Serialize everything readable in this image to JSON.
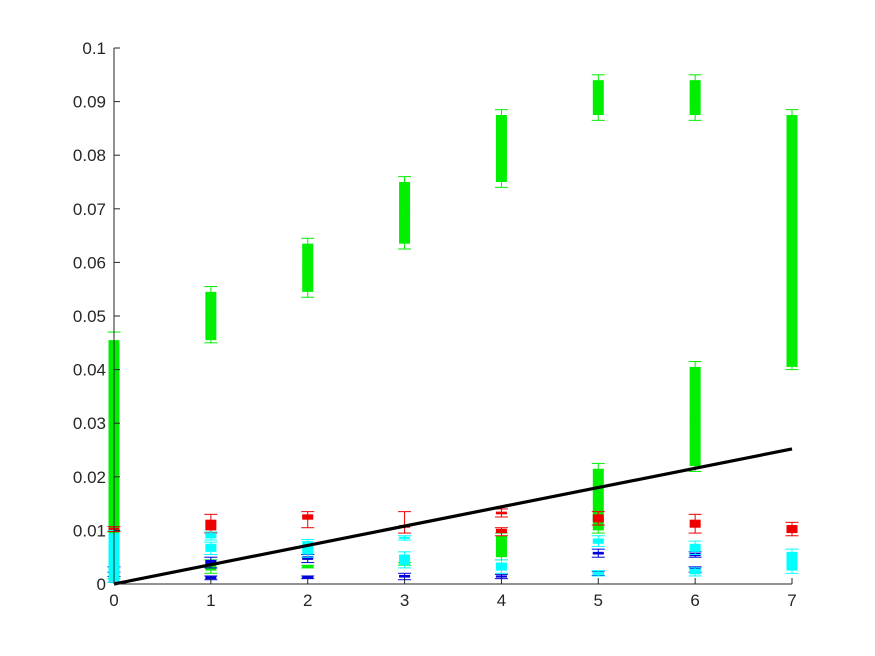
{
  "chart_data": {
    "type": "box",
    "title": "",
    "xlabel": "",
    "ylabel": "",
    "xlim": [
      0,
      7
    ],
    "ylim": [
      0,
      0.1
    ],
    "grid": false,
    "legend": "none",
    "x_ticks": [
      0,
      1,
      2,
      3,
      4,
      5,
      6,
      7
    ],
    "y_ticks": [
      0,
      0.01,
      0.02,
      0.03,
      0.04,
      0.05,
      0.06,
      0.07,
      0.08,
      0.09,
      0.1
    ],
    "x_tick_labels": [
      "0",
      "1",
      "2",
      "3",
      "4",
      "5",
      "6",
      "7"
    ],
    "y_tick_labels": [
      "0",
      "0.01",
      "0.02",
      "0.03",
      "0.04",
      "0.05",
      "0.06",
      "0.07",
      "0.08",
      "0.09",
      "0.1"
    ],
    "series": [
      {
        "color": "#00ee00",
        "boxes": [
          {
            "x": 0,
            "q1": 0.0015,
            "q3": 0.0455,
            "whisker_low": 0.001,
            "whisker_high": 0.047,
            "median": 0.03
          },
          {
            "x": 1,
            "q1": 0.0455,
            "q3": 0.0545,
            "whisker_low": 0.045,
            "whisker_high": 0.0555,
            "median": 0.05
          },
          {
            "x": 2,
            "q1": 0.0545,
            "q3": 0.0635,
            "whisker_low": 0.0535,
            "whisker_high": 0.0645,
            "median": 0.059
          },
          {
            "x": 3,
            "q1": 0.0635,
            "q3": 0.075,
            "whisker_low": 0.0625,
            "whisker_high": 0.076,
            "median": 0.069
          },
          {
            "x": 4,
            "q1": 0.075,
            "q3": 0.0875,
            "whisker_low": 0.074,
            "whisker_high": 0.0885,
            "median": 0.081
          },
          {
            "x": 5,
            "q1": 0.0875,
            "q3": 0.094,
            "whisker_low": 0.0865,
            "whisker_high": 0.095,
            "median": 0.091
          },
          {
            "x": 6,
            "q1": 0.0875,
            "q3": 0.094,
            "whisker_low": 0.0865,
            "whisker_high": 0.095,
            "median": 0.091
          },
          {
            "x": 7,
            "q1": 0.0405,
            "q3": 0.0875,
            "whisker_low": 0.04,
            "whisker_high": 0.0885,
            "median": 0.064
          },
          {
            "x": 1,
            "q1": 0.0025,
            "q3": 0.004,
            "whisker_low": 0.002,
            "whisker_high": 0.0045,
            "median": 0.003
          },
          {
            "x": 2,
            "q1": 0.003,
            "q3": 0.0035,
            "whisker_low": 0.003,
            "whisker_high": 0.0035,
            "median": 0.0032
          },
          {
            "x": 3,
            "q1": 0.0035,
            "q3": 0.004,
            "whisker_low": 0.0035,
            "whisker_high": 0.004,
            "median": 0.0037
          },
          {
            "x": 4,
            "q1": 0.005,
            "q3": 0.009,
            "whisker_low": 0.0045,
            "whisker_high": 0.0095,
            "median": 0.007
          },
          {
            "x": 5,
            "q1": 0.01,
            "q3": 0.0215,
            "whisker_low": 0.0095,
            "whisker_high": 0.0225,
            "median": 0.016
          },
          {
            "x": 6,
            "q1": 0.022,
            "q3": 0.0405,
            "whisker_low": 0.021,
            "whisker_high": 0.0415,
            "median": 0.031
          }
        ]
      },
      {
        "color": "#ee0000",
        "boxes": [
          {
            "x": 0,
            "q1": 0.01,
            "q3": 0.0105,
            "whisker_low": 0.0098,
            "whisker_high": 0.0107,
            "median": 0.0102
          },
          {
            "x": 1,
            "q1": 0.01,
            "q3": 0.012,
            "whisker_low": 0.0095,
            "whisker_high": 0.013,
            "median": 0.011
          },
          {
            "x": 2,
            "q1": 0.012,
            "q3": 0.013,
            "whisker_low": 0.0105,
            "whisker_high": 0.0135,
            "median": 0.0125
          },
          {
            "x": 3,
            "q1": 0.0105,
            "q3": 0.011,
            "whisker_low": 0.0095,
            "whisker_high": 0.0135,
            "median": 0.0108
          },
          {
            "x": 4,
            "q1": 0.013,
            "q3": 0.0135,
            "whisker_low": 0.0125,
            "whisker_high": 0.014,
            "median": 0.0132
          },
          {
            "x": 4,
            "q1": 0.0095,
            "q3": 0.0103,
            "whisker_low": 0.009,
            "whisker_high": 0.0105,
            "median": 0.0099
          },
          {
            "x": 5,
            "q1": 0.0115,
            "q3": 0.013,
            "whisker_low": 0.011,
            "whisker_high": 0.0135,
            "median": 0.012
          },
          {
            "x": 6,
            "q1": 0.0105,
            "q3": 0.012,
            "whisker_low": 0.0095,
            "whisker_high": 0.013,
            "median": 0.011
          },
          {
            "x": 7,
            "q1": 0.0095,
            "q3": 0.011,
            "whisker_low": 0.009,
            "whisker_high": 0.0115,
            "median": 0.0102
          }
        ]
      },
      {
        "color": "#0000dd",
        "boxes": [
          {
            "x": 0,
            "q1": 0.0025,
            "q3": 0.003,
            "whisker_low": 0.0022,
            "whisker_high": 0.0032,
            "median": 0.0027
          },
          {
            "x": 0,
            "q1": 0.0005,
            "q3": 0.0012,
            "whisker_low": 0.0003,
            "whisker_high": 0.0014,
            "median": 0.0008
          },
          {
            "x": 1,
            "q1": 0.0035,
            "q3": 0.0045,
            "whisker_low": 0.003,
            "whisker_high": 0.005,
            "median": 0.004
          },
          {
            "x": 1,
            "q1": 0.0009,
            "q3": 0.0014,
            "whisker_low": 0.0008,
            "whisker_high": 0.0015,
            "median": 0.0011
          },
          {
            "x": 2,
            "q1": 0.0045,
            "q3": 0.0052,
            "whisker_low": 0.004,
            "whisker_high": 0.0055,
            "median": 0.0048
          },
          {
            "x": 2,
            "q1": 0.001,
            "q3": 0.0015,
            "whisker_low": 0.001,
            "whisker_high": 0.0015,
            "median": 0.0012
          },
          {
            "x": 3,
            "q1": 0.0012,
            "q3": 0.0017,
            "whisker_low": 0.0008,
            "whisker_high": 0.002,
            "median": 0.0014
          },
          {
            "x": 4,
            "q1": 0.0012,
            "q3": 0.0016,
            "whisker_low": 0.001,
            "whisker_high": 0.0018,
            "median": 0.0014
          },
          {
            "x": 5,
            "q1": 0.0055,
            "q3": 0.006,
            "whisker_low": 0.005,
            "whisker_high": 0.0065,
            "median": 0.0057
          },
          {
            "x": 5,
            "q1": 0.0018,
            "q3": 0.0022,
            "whisker_low": 0.0016,
            "whisker_high": 0.0024,
            "median": 0.002
          },
          {
            "x": 6,
            "q1": 0.0052,
            "q3": 0.0058,
            "whisker_low": 0.005,
            "whisker_high": 0.006,
            "median": 0.0055
          },
          {
            "x": 6,
            "q1": 0.0025,
            "q3": 0.003,
            "whisker_low": 0.0022,
            "whisker_high": 0.0032,
            "median": 0.0027
          }
        ]
      },
      {
        "color": "#00ffff",
        "boxes": [
          {
            "x": 0,
            "q1": 0.0005,
            "q3": 0.0095,
            "whisker_low": 0.0003,
            "whisker_high": 0.01,
            "median": 0.005
          },
          {
            "x": 1,
            "q1": 0.006,
            "q3": 0.0075,
            "whisker_low": 0.0055,
            "whisker_high": 0.0078,
            "median": 0.0068
          },
          {
            "x": 1,
            "q1": 0.0085,
            "q3": 0.0095,
            "whisker_low": 0.0082,
            "whisker_high": 0.0097,
            "median": 0.009
          },
          {
            "x": 2,
            "q1": 0.0055,
            "q3": 0.008,
            "whisker_low": 0.005,
            "whisker_high": 0.0083,
            "median": 0.007
          },
          {
            "x": 3,
            "q1": 0.0035,
            "q3": 0.0055,
            "whisker_low": 0.003,
            "whisker_high": 0.006,
            "median": 0.0045
          },
          {
            "x": 3,
            "q1": 0.0085,
            "q3": 0.0088,
            "whisker_low": 0.0082,
            "whisker_high": 0.009,
            "median": 0.0086
          },
          {
            "x": 4,
            "q1": 0.0025,
            "q3": 0.004,
            "whisker_low": 0.002,
            "whisker_high": 0.0045,
            "median": 0.0032
          },
          {
            "x": 5,
            "q1": 0.0075,
            "q3": 0.0085,
            "whisker_low": 0.007,
            "whisker_high": 0.009,
            "median": 0.008
          },
          {
            "x": 5,
            "q1": 0.0017,
            "q3": 0.0023,
            "whisker_low": 0.0015,
            "whisker_high": 0.0025,
            "median": 0.002
          },
          {
            "x": 6,
            "q1": 0.006,
            "q3": 0.0075,
            "whisker_low": 0.0055,
            "whisker_high": 0.008,
            "median": 0.0068
          },
          {
            "x": 6,
            "q1": 0.0018,
            "q3": 0.0028,
            "whisker_low": 0.0015,
            "whisker_high": 0.003,
            "median": 0.0023
          },
          {
            "x": 7,
            "q1": 0.0025,
            "q3": 0.006,
            "whisker_low": 0.002,
            "whisker_high": 0.0065,
            "median": 0.004
          }
        ]
      }
    ],
    "reference_line": {
      "color": "#000000",
      "x": [
        0,
        7
      ],
      "y": [
        0,
        0.0252
      ]
    }
  }
}
